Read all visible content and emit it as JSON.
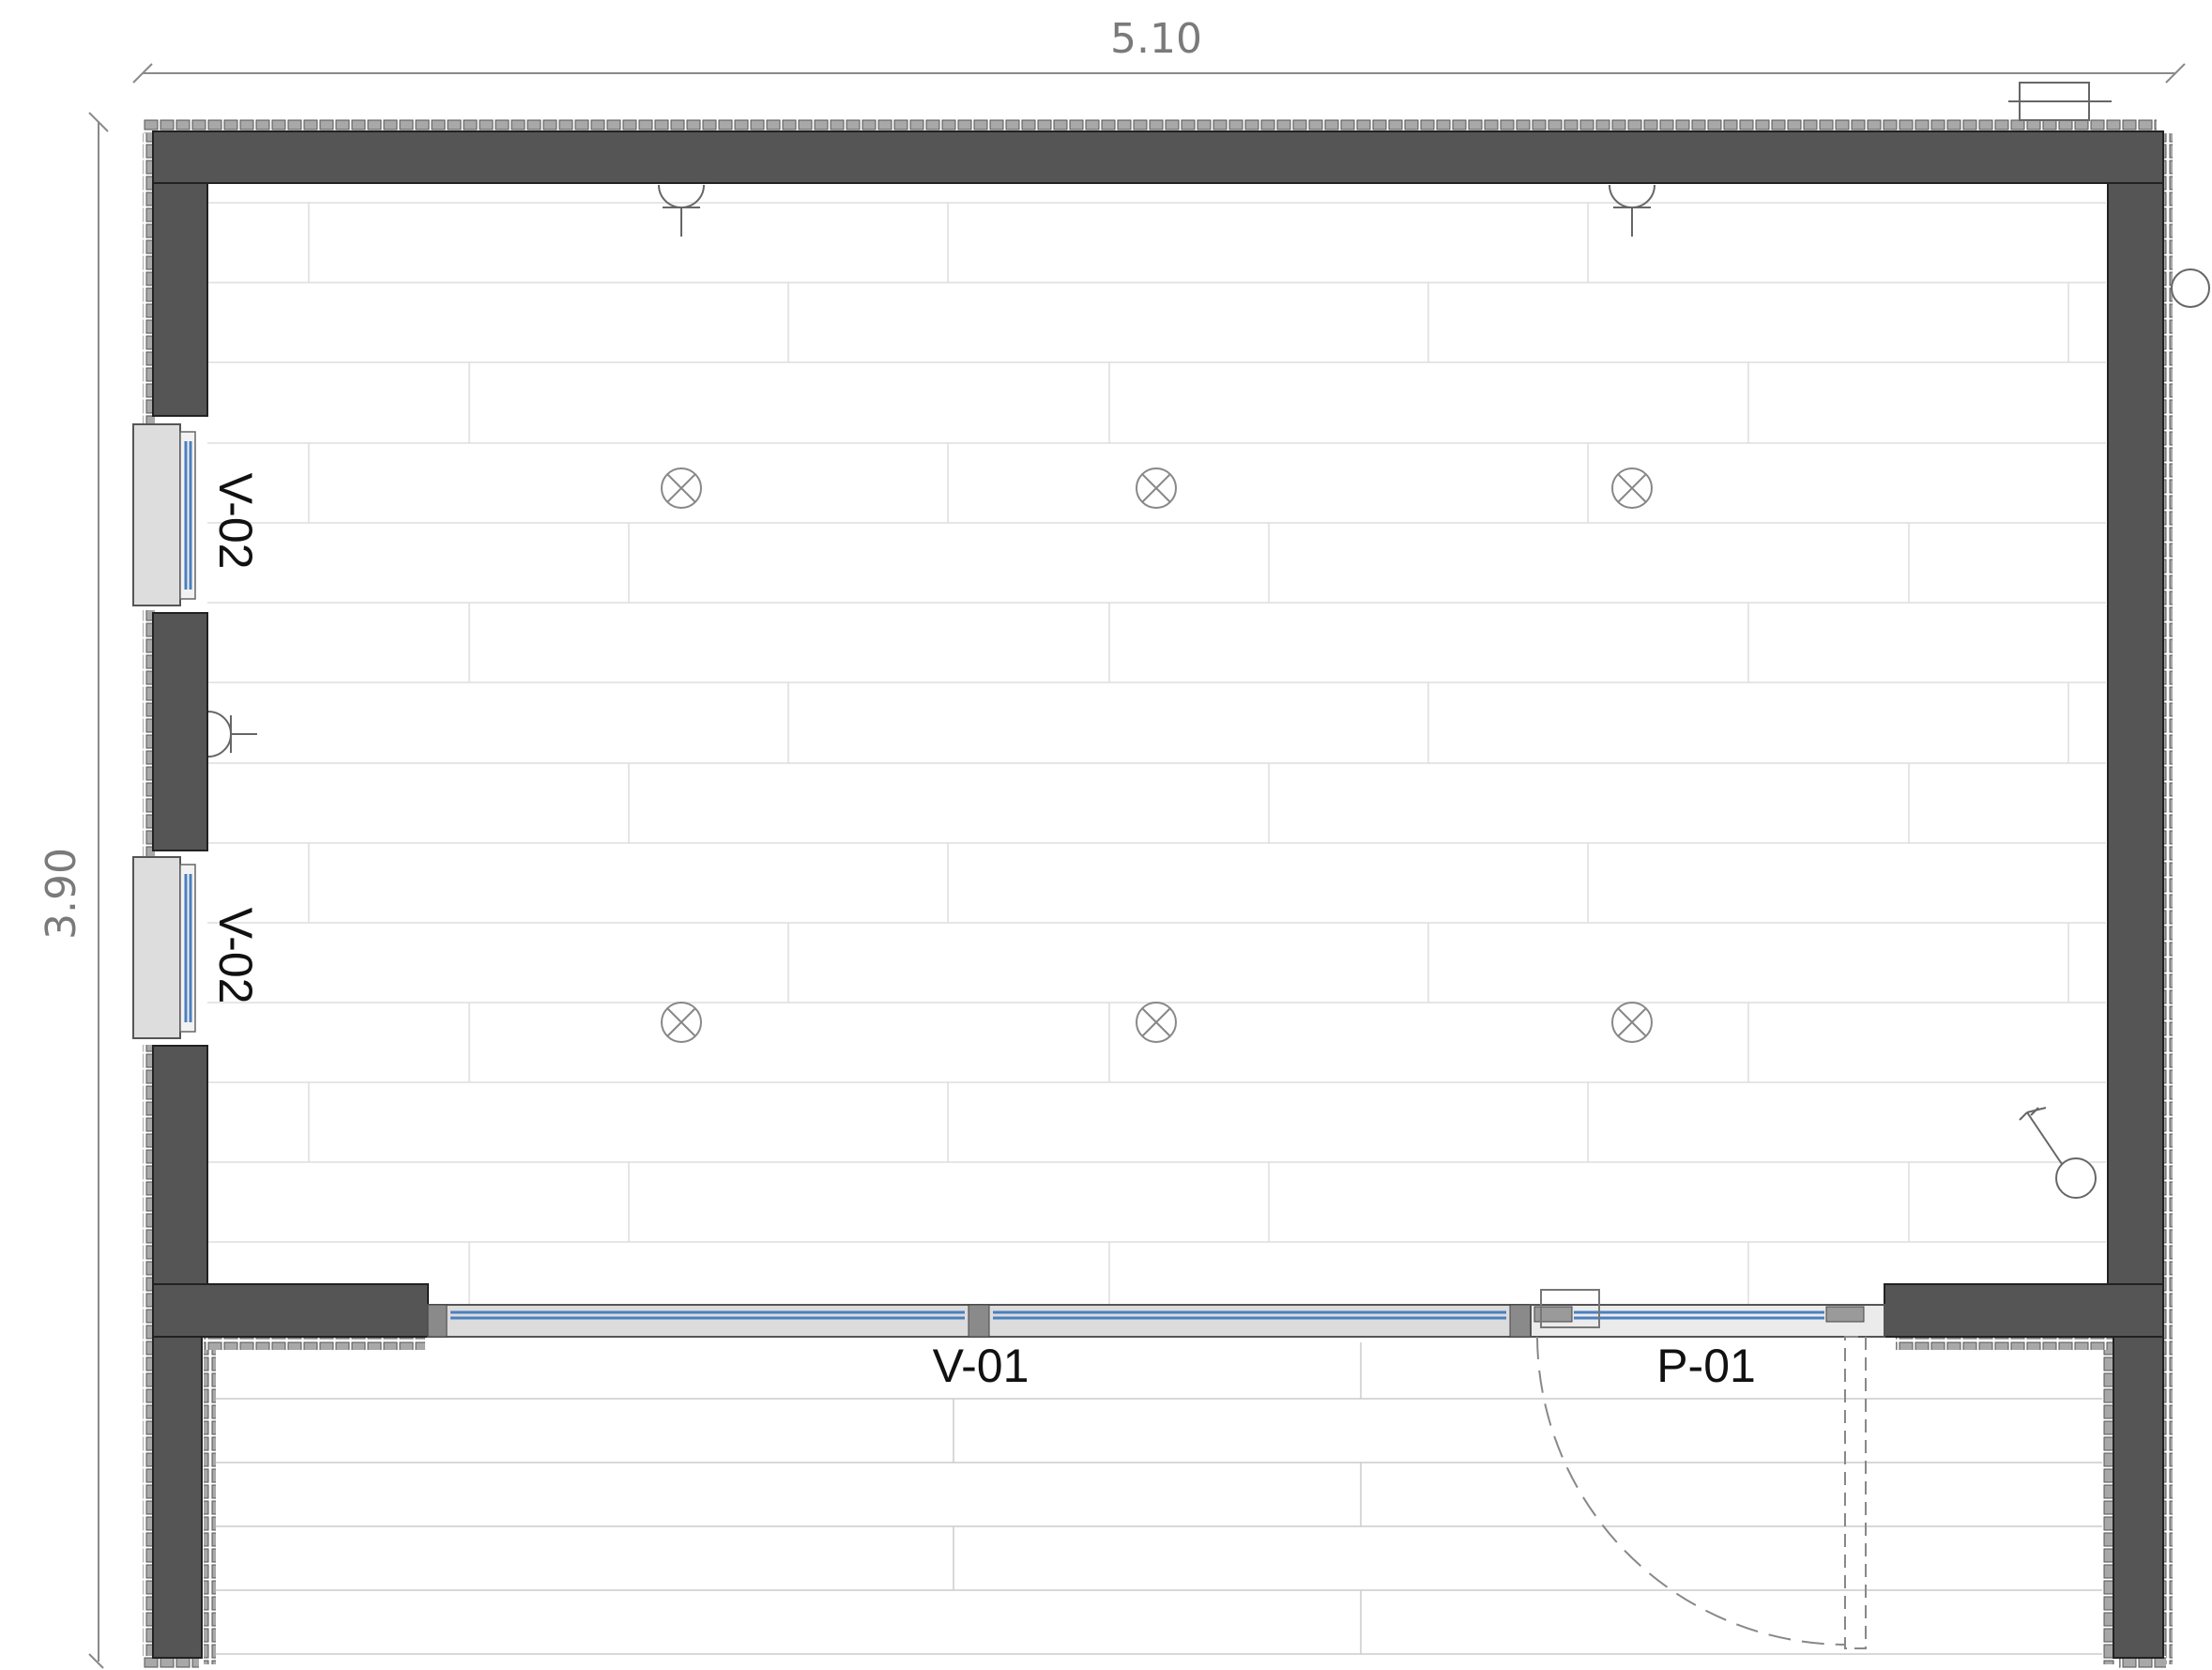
{
  "dimensions": {
    "width_label": "5.10",
    "depth_label": "3.90"
  },
  "openings": {
    "window_left_upper": "V-02",
    "window_left_lower": "V-02",
    "window_front": "V-01",
    "door_front": "P-01"
  },
  "symbols": {
    "ceiling_lights": [
      "light-fixture-icon",
      "light-fixture-icon",
      "light-fixture-icon",
      "light-fixture-icon",
      "light-fixture-icon",
      "light-fixture-icon"
    ],
    "wall_sockets": [
      "wall-socket-icon",
      "wall-socket-icon",
      "wall-socket-icon"
    ],
    "switch": "light-switch-icon"
  },
  "colors": {
    "wall": "#555555",
    "cladding": "#9a9a9a",
    "glass": "#4a7fc0",
    "floor_lines": "#dddddd",
    "dimension": "#8a8a8a"
  }
}
